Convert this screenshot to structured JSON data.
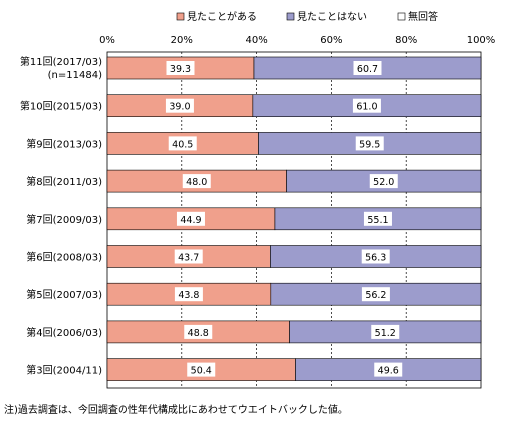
{
  "chart_data": {
    "type": "bar",
    "orientation": "horizontal",
    "stacked": "percent",
    "legend": {
      "position": "top",
      "entries": [
        {
          "name": "見たことがある",
          "color": "#f0a08c"
        },
        {
          "name": "見たことはない",
          "color": "#9c9ccc"
        },
        {
          "name": "無回答",
          "color": "#ffffff"
        }
      ]
    },
    "x_ticks": [
      "0%",
      "20%",
      "40%",
      "60%",
      "80%",
      "100%"
    ],
    "xlim": [
      0,
      100
    ],
    "grid": "vertical dashed",
    "categories": [
      {
        "label": "第11回(2017/03)",
        "sublabel": "(n=11484)"
      },
      {
        "label": "第10回(2015/03)",
        "sublabel": ""
      },
      {
        "label": "第9回(2013/03)",
        "sublabel": ""
      },
      {
        "label": "第8回(2011/03)",
        "sublabel": ""
      },
      {
        "label": "第7回(2009/03)",
        "sublabel": ""
      },
      {
        "label": "第6回(2008/03)",
        "sublabel": ""
      },
      {
        "label": "第5回(2007/03)",
        "sublabel": ""
      },
      {
        "label": "第4回(2006/03)",
        "sublabel": ""
      },
      {
        "label": "第3回(2004/11)",
        "sublabel": ""
      }
    ],
    "series": [
      {
        "name": "見たことがある",
        "values": [
          39.3,
          39.0,
          40.5,
          48.0,
          44.9,
          43.7,
          43.8,
          48.8,
          50.4
        ],
        "labels": [
          "39.3",
          "39.0",
          "40.5",
          "48.0",
          "44.9",
          "43.7",
          "43.8",
          "48.8",
          "50.4"
        ]
      },
      {
        "name": "見たことはない",
        "values": [
          60.7,
          61.0,
          59.5,
          52.0,
          55.1,
          56.3,
          56.2,
          51.2,
          49.6
        ],
        "labels": [
          "60.7",
          "61.0",
          "59.5",
          "52.0",
          "55.1",
          "56.3",
          "56.2",
          "51.2",
          "49.6"
        ]
      },
      {
        "name": "無回答",
        "values": [
          0,
          0,
          0,
          0,
          0,
          0,
          0,
          0,
          0
        ]
      }
    ]
  },
  "note": "注)過去調査は、今回調査の性年代構成比にあわせてウエイトバックした値。"
}
